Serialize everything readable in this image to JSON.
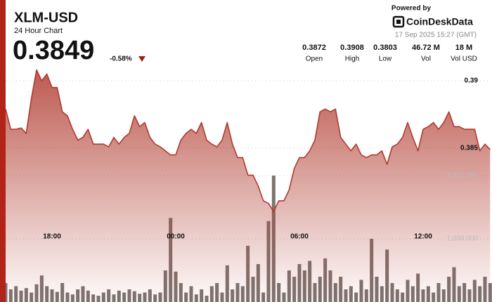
{
  "chart_data": {
    "type": "line",
    "title": "XLM-USD",
    "subtitle": "24 Hour Chart",
    "price": 0.3849,
    "change": "-0.58%",
    "powered_by": "Powered by",
    "brand": "CoinDeskData",
    "timestamp": "17 Sep 2025 15:27 (GMT)",
    "stats": [
      {
        "value": "0.3872",
        "name": "Open"
      },
      {
        "value": "0.3908",
        "name": "High"
      },
      {
        "value": "0.3803",
        "name": "Low"
      },
      {
        "value": "46.72 M",
        "name": "Vol"
      },
      {
        "value": "18 M",
        "name": "Vol USD"
      }
    ],
    "categories": [
      null,
      null,
      null,
      null,
      null,
      null,
      null,
      null,
      null,
      "18:00",
      null,
      null,
      null,
      null,
      null,
      null,
      null,
      null,
      null,
      null,
      null,
      null,
      null,
      null,
      null,
      null,
      null,
      null,
      null,
      null,
      null,
      null,
      null,
      "00:00",
      null,
      null,
      null,
      null,
      null,
      null,
      null,
      null,
      null,
      null,
      null,
      null,
      null,
      null,
      null,
      null,
      null,
      null,
      null,
      null,
      null,
      null,
      null,
      "06:00",
      null,
      null,
      null,
      null,
      null,
      null,
      null,
      null,
      null,
      null,
      null,
      null,
      null,
      null,
      null,
      null,
      null,
      null,
      null,
      null,
      null,
      null,
      null,
      "12:00",
      null,
      null,
      null,
      null,
      null,
      null,
      null,
      null,
      null,
      null,
      null,
      null,
      null
    ],
    "series": [
      {
        "type": "area",
        "color": "#b03a2e",
        "values": [
          0.3879,
          0.3864,
          0.3864,
          0.3865,
          0.3861,
          0.3887,
          0.3908,
          0.39,
          0.3905,
          0.3895,
          0.3895,
          0.3877,
          0.3874,
          0.3864,
          0.3856,
          0.3858,
          0.3864,
          0.3853,
          0.3853,
          0.3853,
          0.3851,
          0.3858,
          0.3853,
          0.3858,
          0.3861,
          0.3874,
          0.3866,
          0.3869,
          0.3858,
          0.3853,
          0.3851,
          0.3848,
          0.3845,
          0.3845,
          0.3856,
          0.3861,
          0.3864,
          0.3861,
          0.3869,
          0.3856,
          0.3853,
          0.3851,
          0.3856,
          0.3869,
          0.3853,
          0.3843,
          0.3843,
          0.383,
          0.383,
          0.3822,
          0.3811,
          0.3809,
          0.3803,
          0.3811,
          0.3811,
          0.3819,
          0.3835,
          0.3843,
          0.3843,
          0.3848,
          0.3856,
          0.3877,
          0.3879,
          0.3877,
          0.3879,
          0.3858,
          0.3853,
          0.3848,
          0.3853,
          0.3845,
          0.3843,
          0.3845,
          0.3845,
          0.3848,
          0.3838,
          0.3851,
          0.3853,
          0.3858,
          0.3869,
          0.3858,
          0.3848,
          0.3864,
          0.3866,
          0.3869,
          0.3864,
          0.3869,
          0.3877,
          0.3866,
          0.3866,
          0.3864,
          0.3864,
          0.3864,
          0.3848,
          0.3853,
          0.3849
        ]
      },
      {
        "type": "bar",
        "axis": "y2",
        "color": "#7d7470",
        "values": [
          300000,
          200000,
          250000,
          180000,
          220000,
          150000,
          280000,
          420000,
          250000,
          200000,
          160000,
          300000,
          150000,
          120000,
          200000,
          250000,
          180000,
          120000,
          100000,
          150000,
          200000,
          120000,
          180000,
          150000,
          200000,
          170000,
          130000,
          150000,
          200000,
          120000,
          150000,
          500000,
          1330000,
          480000,
          300000,
          150000,
          250000,
          120000,
          200000,
          100000,
          250000,
          300000,
          150000,
          580000,
          200000,
          300000,
          250000,
          890000,
          400000,
          600000,
          150000,
          1280000,
          2000000,
          300000,
          150000,
          500000,
          400000,
          600000,
          500000,
          650000,
          300000,
          400000,
          690000,
          500000,
          300000,
          400000,
          200000,
          250000,
          150000,
          350000,
          200000,
          1000000,
          400000,
          250000,
          830000,
          300000,
          200000,
          150000,
          350000,
          250000,
          450000,
          200000,
          250000,
          150000,
          300000,
          200000,
          400000,
          550000,
          250000,
          300000,
          200000,
          350000,
          250000,
          400000,
          300000
        ]
      }
    ],
    "ylim": [
      0.374,
      0.391
    ],
    "yticks": [
      0.385,
      0.39
    ],
    "y2lim": [
      0,
      3500000
    ],
    "y2ticks": [
      {
        "value": 1000000,
        "label": "1,000,000"
      },
      {
        "value": 2000000,
        "label": "2,000,000"
      }
    ],
    "grid": true
  }
}
